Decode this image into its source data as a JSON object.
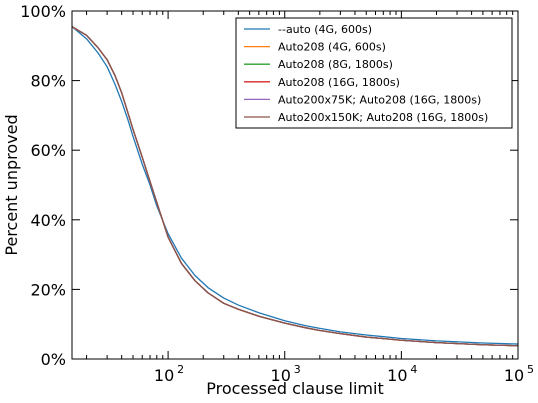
{
  "chart_data": {
    "type": "line",
    "xlabel": "Processed clause limit",
    "ylabel": "Percent unproved",
    "xscale": "log",
    "xlim": [
      15,
      100000
    ],
    "ylim": [
      0,
      100
    ],
    "x_ticks": [
      {
        "value": 100,
        "base": "10",
        "exp": "2"
      },
      {
        "value": 1000,
        "base": "10",
        "exp": "3"
      },
      {
        "value": 10000,
        "base": "10",
        "exp": "4"
      },
      {
        "value": 100000,
        "base": "10",
        "exp": "5"
      }
    ],
    "y_ticks": [
      {
        "value": 0,
        "label": "0%"
      },
      {
        "value": 20,
        "label": "20%"
      },
      {
        "value": 40,
        "label": "40%"
      },
      {
        "value": 60,
        "label": "60%"
      },
      {
        "value": 80,
        "label": "80%"
      },
      {
        "value": 100,
        "label": "100%"
      }
    ],
    "grid": false,
    "legend_position": "top-right",
    "series": [
      {
        "name": "--auto (4G, 600s)",
        "color": "#1f77b4",
        "points": [
          [
            15,
            95.5
          ],
          [
            20,
            92
          ],
          [
            25,
            88
          ],
          [
            30,
            84
          ],
          [
            35,
            79
          ],
          [
            40,
            74
          ],
          [
            45,
            69
          ],
          [
            50,
            64
          ],
          [
            60,
            56
          ],
          [
            70,
            50
          ],
          [
            80,
            44
          ],
          [
            100,
            36
          ],
          [
            130,
            29
          ],
          [
            170,
            24
          ],
          [
            220,
            20.5
          ],
          [
            300,
            17.5
          ],
          [
            400,
            15.5
          ],
          [
            600,
            13.3
          ],
          [
            1000,
            11
          ],
          [
            1500,
            9.6
          ],
          [
            2000,
            8.8
          ],
          [
            3000,
            7.8
          ],
          [
            5000,
            6.9
          ],
          [
            10000,
            5.9
          ],
          [
            20000,
            5.2
          ],
          [
            50000,
            4.6
          ],
          [
            100000,
            4.3
          ]
        ]
      },
      {
        "name": "Auto208 (4G, 600s)",
        "color": "#ff7f0e",
        "points": [
          [
            15,
            95.5
          ],
          [
            20,
            93
          ],
          [
            25,
            89.5
          ],
          [
            30,
            86
          ],
          [
            35,
            81.5
          ],
          [
            40,
            76.5
          ],
          [
            45,
            71
          ],
          [
            50,
            66
          ],
          [
            60,
            58
          ],
          [
            70,
            51
          ],
          [
            80,
            45
          ],
          [
            100,
            35
          ],
          [
            130,
            27.5
          ],
          [
            170,
            22.5
          ],
          [
            220,
            19
          ],
          [
            300,
            16
          ],
          [
            400,
            14.3
          ],
          [
            600,
            12.3
          ],
          [
            1000,
            10.3
          ],
          [
            1500,
            9
          ],
          [
            2000,
            8.2
          ],
          [
            3000,
            7.3
          ],
          [
            5000,
            6.3
          ],
          [
            10000,
            5.4
          ],
          [
            20000,
            4.7
          ],
          [
            50000,
            4.1
          ],
          [
            100000,
            3.8
          ]
        ]
      },
      {
        "name": "Auto208 (8G, 1800s)",
        "color": "#2ca02c",
        "points": [
          [
            15,
            95.5
          ],
          [
            20,
            93
          ],
          [
            25,
            89.5
          ],
          [
            30,
            86
          ],
          [
            35,
            81.5
          ],
          [
            40,
            76.5
          ],
          [
            45,
            71
          ],
          [
            50,
            66
          ],
          [
            60,
            58
          ],
          [
            70,
            51
          ],
          [
            80,
            45
          ],
          [
            100,
            35
          ],
          [
            130,
            27.5
          ],
          [
            170,
            22.5
          ],
          [
            220,
            19
          ],
          [
            300,
            16
          ],
          [
            400,
            14.3
          ],
          [
            600,
            12.3
          ],
          [
            1000,
            10.3
          ],
          [
            1500,
            9
          ],
          [
            2000,
            8.2
          ],
          [
            3000,
            7.3
          ],
          [
            5000,
            6.3
          ],
          [
            10000,
            5.4
          ],
          [
            20000,
            4.7
          ],
          [
            50000,
            4.1
          ],
          [
            100000,
            3.8
          ]
        ]
      },
      {
        "name": "Auto208 (16G, 1800s)",
        "color": "#d62728",
        "points": [
          [
            15,
            95.5
          ],
          [
            20,
            93
          ],
          [
            25,
            89.5
          ],
          [
            30,
            86
          ],
          [
            35,
            81.5
          ],
          [
            40,
            76.5
          ],
          [
            45,
            71
          ],
          [
            50,
            66
          ],
          [
            60,
            58
          ],
          [
            70,
            51
          ],
          [
            80,
            45
          ],
          [
            100,
            35
          ],
          [
            130,
            27.5
          ],
          [
            170,
            22.5
          ],
          [
            220,
            19
          ],
          [
            300,
            16
          ],
          [
            400,
            14.3
          ],
          [
            600,
            12.3
          ],
          [
            1000,
            10.3
          ],
          [
            1500,
            9
          ],
          [
            2000,
            8.2
          ],
          [
            3000,
            7.3
          ],
          [
            5000,
            6.3
          ],
          [
            10000,
            5.4
          ],
          [
            20000,
            4.7
          ],
          [
            50000,
            4.1
          ],
          [
            100000,
            3.8
          ]
        ]
      },
      {
        "name": "Auto200x75K; Auto208 (16G, 1800s)",
        "color": "#9467bd",
        "points": [
          [
            15,
            95.5
          ],
          [
            20,
            93
          ],
          [
            25,
            89.5
          ],
          [
            30,
            86
          ],
          [
            35,
            81.5
          ],
          [
            40,
            76.5
          ],
          [
            45,
            71
          ],
          [
            50,
            66
          ],
          [
            60,
            58
          ],
          [
            70,
            51
          ],
          [
            80,
            45
          ],
          [
            100,
            35
          ],
          [
            130,
            27.5
          ],
          [
            170,
            22.5
          ],
          [
            220,
            19
          ],
          [
            300,
            16
          ],
          [
            400,
            14.3
          ],
          [
            600,
            12.3
          ],
          [
            1000,
            10.3
          ],
          [
            1500,
            9
          ],
          [
            2000,
            8.2
          ],
          [
            3000,
            7.3
          ],
          [
            5000,
            6.3
          ],
          [
            10000,
            5.4
          ],
          [
            20000,
            4.7
          ],
          [
            50000,
            4.1
          ],
          [
            100000,
            3.8
          ]
        ]
      },
      {
        "name": "Auto200x150K; Auto208 (16G, 1800s)",
        "color": "#8c564b",
        "points": [
          [
            15,
            95.5
          ],
          [
            20,
            93
          ],
          [
            25,
            89.5
          ],
          [
            30,
            86
          ],
          [
            35,
            81.5
          ],
          [
            40,
            76.5
          ],
          [
            45,
            71
          ],
          [
            50,
            66
          ],
          [
            60,
            58
          ],
          [
            70,
            51
          ],
          [
            80,
            45
          ],
          [
            100,
            35
          ],
          [
            130,
            27.5
          ],
          [
            170,
            22.5
          ],
          [
            220,
            19
          ],
          [
            300,
            16
          ],
          [
            400,
            14.3
          ],
          [
            600,
            12.3
          ],
          [
            1000,
            10.3
          ],
          [
            1500,
            9
          ],
          [
            2000,
            8.2
          ],
          [
            3000,
            7.3
          ],
          [
            5000,
            6.3
          ],
          [
            10000,
            5.4
          ],
          [
            20000,
            4.7
          ],
          [
            50000,
            4.1
          ],
          [
            100000,
            3.8
          ]
        ]
      }
    ]
  }
}
